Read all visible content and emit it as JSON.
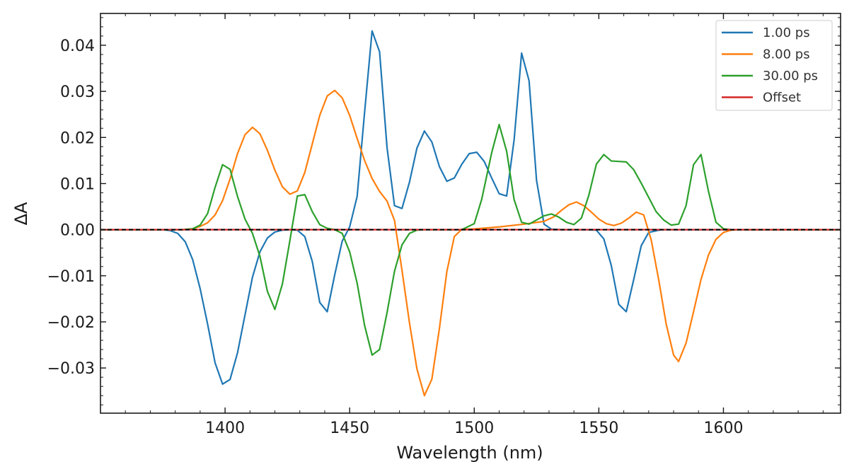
{
  "chart_data": {
    "type": "line",
    "xlabel": "Wavelength (nm)",
    "ylabel": "ΔA",
    "xlim": [
      1350,
      1647
    ],
    "ylim": [
      -0.0398,
      0.0469
    ],
    "x_ticks": [
      1400,
      1450,
      1500,
      1550,
      1600
    ],
    "x_tick_labels": [
      "1400",
      "1450",
      "1500",
      "1550",
      "1600"
    ],
    "x_minor_step": 10,
    "y_ticks": [
      0.04,
      0.03,
      0.02,
      0.01,
      0.0,
      -0.01,
      -0.02,
      -0.03
    ],
    "y_tick_labels": [
      "0.04",
      "0.03",
      "0.02",
      "0.01",
      "0.00",
      "−0.01",
      "−0.02",
      "−0.03"
    ],
    "y_minor_step": 0.002,
    "grid": false,
    "legend_position": "top-right",
    "zero_line": {
      "y": 0,
      "color": "#000000",
      "style": "dashed"
    },
    "series": [
      {
        "name": "1.00 ps",
        "color": "#1f77b4",
        "x": [
          1350,
          1375,
          1378,
          1381,
          1384,
          1387,
          1390,
          1393,
          1396,
          1399,
          1402,
          1405,
          1408,
          1411,
          1414,
          1417,
          1420,
          1423,
          1426,
          1429,
          1432,
          1435,
          1438,
          1441,
          1444,
          1447,
          1450,
          1453,
          1456,
          1459,
          1462,
          1465,
          1468,
          1471,
          1474,
          1477,
          1480,
          1483,
          1486,
          1489,
          1492,
          1495,
          1498,
          1501,
          1504,
          1507,
          1510,
          1513,
          1516,
          1519,
          1522,
          1525,
          1528,
          1531,
          1535,
          1540,
          1545,
          1549,
          1552,
          1555,
          1558,
          1561,
          1564,
          1567,
          1570,
          1575,
          1647
        ],
        "y": [
          0,
          0,
          -0.0002,
          -0.0008,
          -0.0026,
          -0.0065,
          -0.0128,
          -0.0205,
          -0.0289,
          -0.0335,
          -0.0325,
          -0.0267,
          -0.0185,
          -0.0103,
          -0.0048,
          -0.0018,
          -0.0005,
          -0.0001,
          0.0,
          -0.0001,
          -0.0015,
          -0.0069,
          -0.0158,
          -0.0178,
          -0.0098,
          -0.0025,
          0.0006,
          0.0072,
          0.0255,
          0.0431,
          0.0386,
          0.0178,
          0.0052,
          0.0046,
          0.0103,
          0.0177,
          0.0214,
          0.019,
          0.0137,
          0.0105,
          0.0112,
          0.0142,
          0.0165,
          0.0168,
          0.0148,
          0.0112,
          0.0078,
          0.0073,
          0.0195,
          0.0383,
          0.0323,
          0.0107,
          0.0012,
          0.0001,
          0.0,
          0.0,
          0.0,
          -0.0001,
          -0.002,
          -0.0078,
          -0.0162,
          -0.0178,
          -0.0108,
          -0.0035,
          -0.0006,
          0.0,
          0.0
        ]
      },
      {
        "name": "8.00 ps",
        "color": "#ff7f0e",
        "x": [
          1350,
          1383,
          1387,
          1390,
          1393,
          1396,
          1399,
          1402,
          1405,
          1408,
          1411,
          1414,
          1417,
          1420,
          1423,
          1426,
          1429,
          1432,
          1435,
          1438,
          1441,
          1444,
          1447,
          1450,
          1453,
          1456,
          1459,
          1462,
          1465,
          1468,
          1471,
          1474,
          1477,
          1480,
          1483,
          1486,
          1489,
          1492,
          1495,
          1498,
          1501,
          1510,
          1520,
          1528,
          1532,
          1535,
          1538,
          1541,
          1544,
          1547,
          1550,
          1553,
          1556,
          1559,
          1562,
          1565,
          1568,
          1571,
          1574,
          1577,
          1580,
          1582,
          1585,
          1588,
          1591,
          1594,
          1597,
          1600,
          1603,
          1606,
          1647
        ],
        "y": [
          0,
          0,
          0.0002,
          0.0007,
          0.0015,
          0.0032,
          0.0063,
          0.011,
          0.0165,
          0.0206,
          0.0222,
          0.0208,
          0.0172,
          0.0129,
          0.0093,
          0.0077,
          0.0084,
          0.0124,
          0.0186,
          0.0248,
          0.029,
          0.0302,
          0.0286,
          0.0248,
          0.0198,
          0.015,
          0.0111,
          0.0083,
          0.0062,
          0.002,
          -0.0088,
          -0.0202,
          -0.0302,
          -0.036,
          -0.0324,
          -0.0215,
          -0.0091,
          -0.0015,
          0.0001,
          0.0001,
          0.0002,
          0.0006,
          0.0012,
          0.0018,
          0.0028,
          0.0042,
          0.0054,
          0.006,
          0.0052,
          0.0038,
          0.0023,
          0.0013,
          0.0009,
          0.0014,
          0.0025,
          0.0038,
          0.0032,
          -0.0022,
          -0.0108,
          -0.0204,
          -0.0272,
          -0.0286,
          -0.0246,
          -0.0178,
          -0.0108,
          -0.0055,
          -0.0021,
          -0.0006,
          -0.0001,
          0.0,
          0.0
        ]
      },
      {
        "name": "30.00 ps",
        "color": "#2ca02c",
        "x": [
          1350,
          1383,
          1387,
          1390,
          1393,
          1396,
          1399,
          1402,
          1405,
          1408,
          1411,
          1414,
          1417,
          1420,
          1423,
          1426,
          1429,
          1432,
          1435,
          1438,
          1441,
          1444,
          1447,
          1450,
          1453,
          1456,
          1459,
          1462,
          1465,
          1468,
          1471,
          1474,
          1477,
          1480,
          1495,
          1500,
          1503,
          1507,
          1510,
          1513,
          1516,
          1519,
          1522,
          1525,
          1528,
          1531,
          1534,
          1537,
          1540,
          1543,
          1546,
          1549,
          1552,
          1555,
          1558,
          1561,
          1564,
          1567,
          1570,
          1573,
          1576,
          1579,
          1582,
          1585,
          1588,
          1591,
          1594,
          1597,
          1600,
          1603,
          1647
        ],
        "y": [
          0,
          0,
          0.0002,
          0.001,
          0.0035,
          0.0092,
          0.0141,
          0.0131,
          0.0072,
          0.0023,
          -0.0008,
          -0.0058,
          -0.0134,
          -0.0173,
          -0.0118,
          -0.0024,
          0.0073,
          0.0076,
          0.0039,
          0.0011,
          0.0003,
          0.0,
          -0.0008,
          -0.0048,
          -0.0116,
          -0.0208,
          -0.0272,
          -0.026,
          -0.018,
          -0.009,
          -0.0033,
          -0.0008,
          -0.0001,
          0.0,
          0.0,
          0.0013,
          0.0066,
          0.0167,
          0.0228,
          0.017,
          0.0065,
          0.0016,
          0.0012,
          0.0021,
          0.003,
          0.0034,
          0.0027,
          0.0016,
          0.0011,
          0.0025,
          0.0075,
          0.0142,
          0.0163,
          0.0149,
          0.0148,
          0.0147,
          0.013,
          0.0101,
          0.007,
          0.0039,
          0.0021,
          0.001,
          0.0012,
          0.0052,
          0.0141,
          0.0163,
          0.0083,
          0.0016,
          0.0002,
          0.0,
          0.0
        ]
      },
      {
        "name": "Offset",
        "color": "#d62728",
        "x": [
          1350,
          1647
        ],
        "y": [
          0,
          0
        ]
      }
    ]
  }
}
